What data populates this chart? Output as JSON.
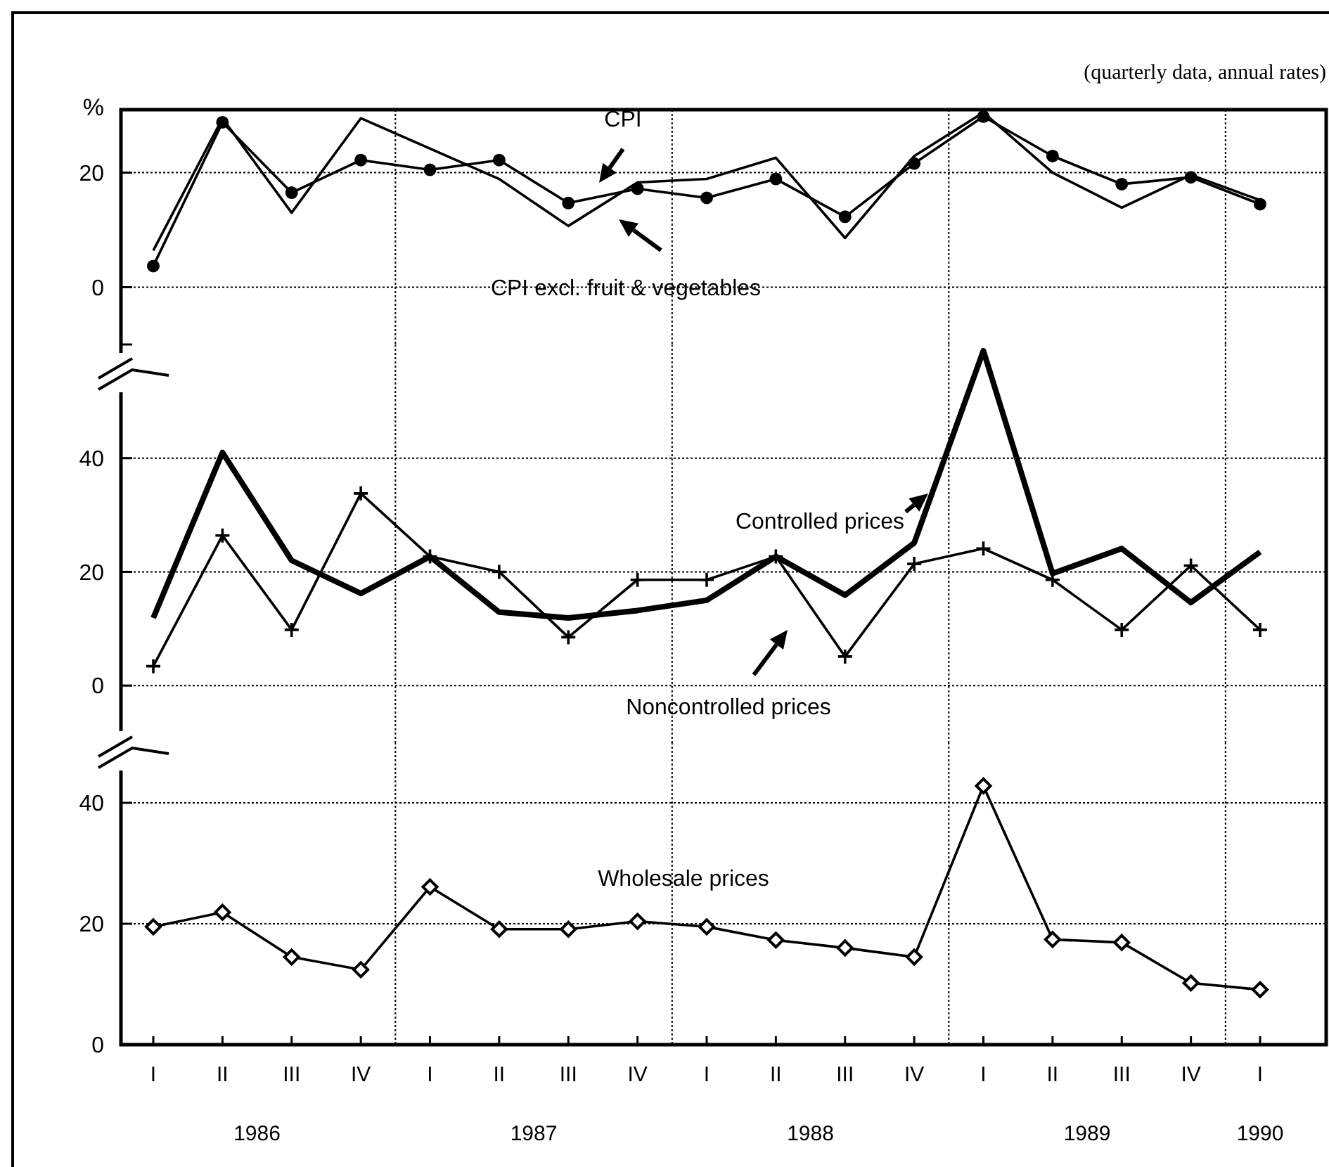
{
  "chart_data": [
    {
      "type": "line",
      "subtitle": "(quarterly data, annual rates)",
      "ylabel": "%",
      "ylim": [
        -10,
        31
      ],
      "yticks": [
        {
          "value": -10,
          "label": null
        },
        0,
        20
      ],
      "tick_labels": "y",
      "grid": true,
      "series": [
        {
          "name": "CPI",
          "color": "#000000",
          "marker": "circle",
          "values": [
            3.7,
            28.8,
            16.5,
            22.2,
            20.5,
            22.2,
            14.7,
            17.2,
            15.6,
            18.9,
            12.3,
            21.6,
            29.8,
            22.9,
            18,
            19.2,
            14.5
          ]
        },
        {
          "name": "CPI excl. fruit & vegetables",
          "color": "#000000",
          "marker": "none",
          "values": [
            6.4,
            29.5,
            13,
            29.5,
            24.2,
            18.9,
            10.7,
            18.3,
            18.9,
            22.6,
            8.6,
            22.9,
            30.5,
            20,
            13.9,
            19.6,
            15.2
          ]
        }
      ]
    },
    {
      "type": "line",
      "ylim": [
        -10,
        60
      ],
      "yticks": [
        0,
        20,
        40
      ],
      "tick_labels": "y",
      "grid": true,
      "legend": "bottom",
      "series": [
        {
          "name": "Controlled prices",
          "color": "#000000",
          "marker": "none",
          "values": [
            11.9,
            41,
            22,
            16.2,
            22.7,
            12.9,
            11.9,
            13.2,
            15,
            22.7,
            15.9,
            25.1,
            58.9,
            19.7,
            24.1,
            14.6,
            23.5
          ]
        },
        {
          "name": "Noncontrolled prices",
          "color": "#000000",
          "marker": "cross",
          "values": [
            3.4,
            26.4,
            9.8,
            33.8,
            22.7,
            20,
            8.5,
            18.6,
            18.6,
            22.7,
            5.1,
            21.4,
            24.1,
            18.6,
            9.8,
            21.1,
            9.8
          ]
        }
      ]
    },
    {
      "type": "line",
      "categories": [
        "I",
        "II",
        "III",
        "IV",
        "I",
        "II",
        "III",
        "IV",
        "I",
        "II",
        "III",
        "IV",
        "I",
        "II",
        "III",
        "IV",
        "I"
      ],
      "ylim": [
        0,
        50
      ],
      "yticks": [
        0,
        20,
        40
      ],
      "grid": true,
      "annotations": [
        "1986",
        "1987",
        "1988",
        "1989",
        "1990"
      ],
      "series": [
        {
          "name": "Wholesale prices",
          "color": "#000000",
          "marker": "diamond",
          "values": [
            19.5,
            21.9,
            14.5,
            12.4,
            26.1,
            19.1,
            19.1,
            20.4,
            19.5,
            17.3,
            16,
            14.5,
            42.8,
            17.4,
            16.9,
            10.2,
            9.1
          ]
        }
      ]
    }
  ]
}
